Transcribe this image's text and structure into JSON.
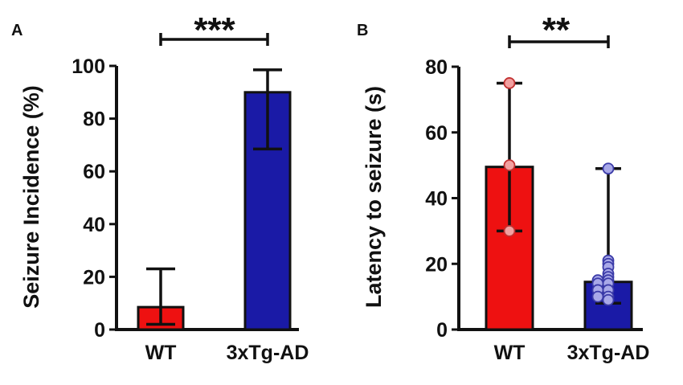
{
  "colors": {
    "red": "#ee1111",
    "blue": "#1a1aa6",
    "dot_fill_red": "#f2a0a0",
    "dot_fill_blue": "#a8a8e8",
    "ink": "#111111"
  },
  "chart_data": [
    {
      "panel": "A",
      "type": "bar",
      "ylabel": "Seizure Incidence (%)",
      "ylim": [
        0,
        100
      ],
      "yticks": [
        "0",
        "20",
        "40",
        "60",
        "80",
        "100"
      ],
      "categories": [
        "WT",
        "3xTg-AD"
      ],
      "values": [
        8.5,
        90
      ],
      "error_low": [
        2,
        68.5
      ],
      "error_high": [
        23,
        98.5
      ],
      "bar_colors": [
        "#ee1111",
        "#1a1aa6"
      ],
      "significance": "***"
    },
    {
      "panel": "B",
      "type": "bar",
      "ylabel": "Latency to seizure (s)",
      "ylim": [
        0,
        80
      ],
      "yticks": [
        "0",
        "20",
        "40",
        "60",
        "80"
      ],
      "categories": [
        "WT",
        "3xTg-AD"
      ],
      "values": [
        49.5,
        14.5
      ],
      "error_low": [
        30,
        8
      ],
      "error_high": [
        75,
        49
      ],
      "bar_colors": [
        "#ee1111",
        "#1a1aa6"
      ],
      "points": [
        [
          75,
          50,
          30
        ],
        [
          49,
          21,
          20,
          19,
          17,
          16,
          15,
          15,
          14,
          14,
          12,
          12,
          10,
          10,
          9
        ]
      ],
      "significance": "**"
    }
  ]
}
